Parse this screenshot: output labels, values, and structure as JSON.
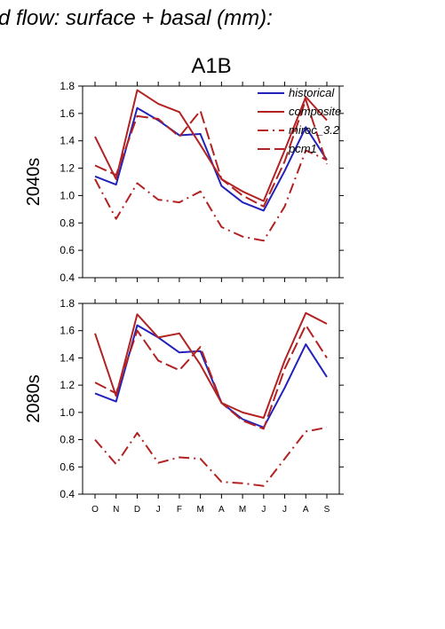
{
  "title": "d flow: surface + basal (mm):",
  "subtitle": "A1B",
  "colors": {
    "historical": "#2222bb",
    "scenario": "#b22222"
  },
  "chart_data": [
    {
      "type": "line",
      "row_label": "2040s",
      "categories": [
        "O",
        "N",
        "D",
        "J",
        "F",
        "M",
        "A",
        "M",
        "J",
        "J",
        "A",
        "S"
      ],
      "ylim": [
        0.4,
        1.8
      ],
      "yticks": [
        "0.4",
        "0.6",
        "0.8",
        "1.0",
        "1.2",
        "1.4",
        "1.6",
        "1.8"
      ],
      "legend_position": "top-right",
      "series": [
        {
          "name": "historical",
          "style": "solid",
          "color": "#2222bb",
          "values": [
            1.14,
            1.08,
            1.64,
            1.55,
            1.44,
            1.45,
            1.07,
            0.95,
            0.89,
            1.18,
            1.5,
            1.26
          ]
        },
        {
          "name": "composite",
          "style": "solid",
          "color": "#b22222",
          "values": [
            1.43,
            1.12,
            1.77,
            1.67,
            1.61,
            1.37,
            1.12,
            1.03,
            0.96,
            1.33,
            1.72,
            1.55
          ]
        },
        {
          "name": "miroc_3.2",
          "style": "dashdot",
          "color": "#b22222",
          "values": [
            1.12,
            0.83,
            1.09,
            0.97,
            0.95,
            1.03,
            0.77,
            0.7,
            0.67,
            0.92,
            1.33,
            1.26
          ]
        },
        {
          "name": "pcm1",
          "style": "dash",
          "color": "#b22222",
          "values": [
            1.22,
            1.15,
            1.58,
            1.56,
            1.43,
            1.62,
            1.12,
            1.0,
            0.92,
            1.25,
            1.7,
            1.23
          ]
        }
      ]
    },
    {
      "type": "line",
      "row_label": "2080s",
      "categories": [
        "O",
        "N",
        "D",
        "J",
        "F",
        "M",
        "A",
        "M",
        "J",
        "J",
        "A",
        "S"
      ],
      "ylim": [
        0.4,
        1.8
      ],
      "yticks": [
        "0.4",
        "0.6",
        "0.8",
        "1.0",
        "1.2",
        "1.4",
        "1.6",
        "1.8"
      ],
      "series": [
        {
          "name": "historical",
          "style": "solid",
          "color": "#2222bb",
          "values": [
            1.14,
            1.08,
            1.64,
            1.55,
            1.44,
            1.45,
            1.07,
            0.95,
            0.89,
            1.18,
            1.5,
            1.26
          ]
        },
        {
          "name": "composite",
          "style": "solid",
          "color": "#b22222",
          "values": [
            1.58,
            1.12,
            1.72,
            1.55,
            1.58,
            1.35,
            1.07,
            1.0,
            0.96,
            1.38,
            1.73,
            1.65
          ]
        },
        {
          "name": "miroc_3.2",
          "style": "dashdot",
          "color": "#b22222",
          "values": [
            0.8,
            0.62,
            0.85,
            0.63,
            0.67,
            0.66,
            0.49,
            0.48,
            0.46,
            0.66,
            0.86,
            0.89
          ]
        },
        {
          "name": "pcm1",
          "style": "dash",
          "color": "#b22222",
          "values": [
            1.22,
            1.14,
            1.6,
            1.38,
            1.31,
            1.48,
            1.07,
            0.94,
            0.88,
            1.32,
            1.64,
            1.4
          ]
        }
      ]
    }
  ]
}
